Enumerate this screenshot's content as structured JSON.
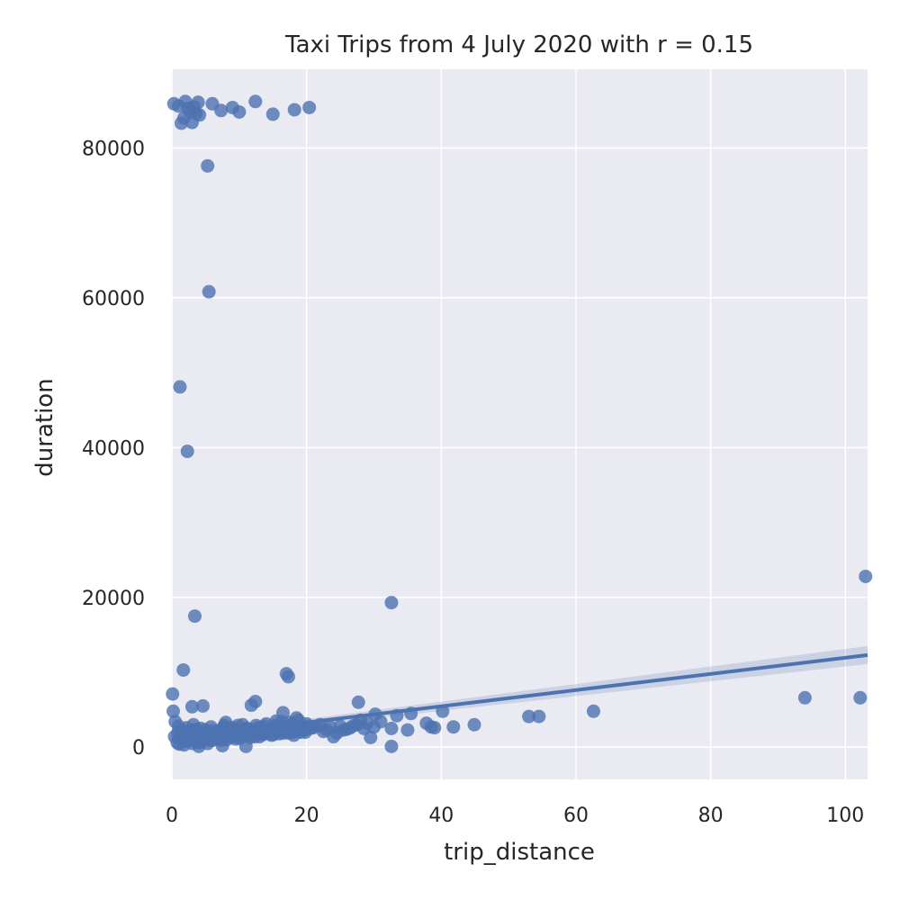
{
  "chart_data": {
    "type": "scatter",
    "title": "Taxi Trips from 4 July 2020 with r = 0.15",
    "xlabel": "trip_distance",
    "ylabel": "duration",
    "xlim": [
      0,
      103.3
    ],
    "ylim": [
      -4300,
      90500
    ],
    "xticks": [
      0,
      20,
      40,
      60,
      80,
      100
    ],
    "yticks": [
      0,
      20000,
      40000,
      60000,
      80000
    ],
    "grid": true,
    "colors": {
      "background": "#eaeaf2",
      "grid": "#ffffff",
      "points": "#4c72b0",
      "fit_band": "#4c72b0"
    },
    "regression": {
      "x_start": 0,
      "y_start": 1150,
      "x_end": 103.3,
      "y_end": 12300,
      "ci_start_half_width": 250,
      "ci_end_half_width": 1200
    },
    "points": [
      [
        0.3,
        85900
      ],
      [
        1.0,
        85600
      ],
      [
        1.4,
        83300
      ],
      [
        1.8,
        84000
      ],
      [
        2.0,
        86200
      ],
      [
        2.4,
        85300
      ],
      [
        2.7,
        84800
      ],
      [
        3.0,
        83400
      ],
      [
        3.3,
        85500
      ],
      [
        3.6,
        84600
      ],
      [
        3.9,
        86100
      ],
      [
        4.1,
        84400
      ],
      [
        6.0,
        85900
      ],
      [
        7.3,
        85000
      ],
      [
        9.0,
        85400
      ],
      [
        10.0,
        84800
      ],
      [
        12.4,
        86200
      ],
      [
        15.0,
        84500
      ],
      [
        18.2,
        85100
      ],
      [
        20.4,
        85400
      ],
      [
        5.3,
        77600
      ],
      [
        5.5,
        60800
      ],
      [
        1.2,
        48100
      ],
      [
        2.3,
        39500
      ],
      [
        3.4,
        17500
      ],
      [
        1.7,
        10300
      ],
      [
        32.6,
        19300
      ],
      [
        103.0,
        22800
      ],
      [
        17.0,
        9800
      ],
      [
        17.3,
        9400
      ],
      [
        0.1,
        7100
      ],
      [
        3.0,
        5400
      ],
      [
        4.6,
        5500
      ],
      [
        11.8,
        5600
      ],
      [
        12.4,
        6100
      ],
      [
        27.7,
        6000
      ],
      [
        94.0,
        6600
      ],
      [
        102.2,
        6600
      ],
      [
        62.6,
        4800
      ],
      [
        53.0,
        4100
      ],
      [
        54.5,
        4100
      ],
      [
        40.2,
        4800
      ],
      [
        35.5,
        4500
      ],
      [
        33.4,
        4200
      ],
      [
        30.2,
        4400
      ],
      [
        37.8,
        3200
      ],
      [
        38.5,
        2700
      ],
      [
        39.0,
        2600
      ],
      [
        41.8,
        2700
      ],
      [
        44.9,
        3000
      ],
      [
        35.0,
        2300
      ],
      [
        32.6,
        2500
      ],
      [
        29.5,
        1300
      ],
      [
        32.6,
        100
      ],
      [
        0.2,
        4800
      ],
      [
        0.5,
        3400
      ],
      [
        1.0,
        2800
      ],
      [
        1.5,
        2100
      ],
      [
        2.0,
        1500
      ],
      [
        2.5,
        900
      ],
      [
        3.0,
        500
      ],
      [
        3.5,
        1200
      ],
      [
        4.0,
        100
      ],
      [
        4.5,
        1800
      ],
      [
        5.0,
        2300
      ],
      [
        5.5,
        1600
      ],
      [
        6.0,
        900
      ],
      [
        6.5,
        1300
      ],
      [
        7.0,
        2100
      ],
      [
        7.5,
        200
      ],
      [
        8.0,
        3300
      ],
      [
        8.5,
        1500
      ],
      [
        9.0,
        2600
      ],
      [
        9.5,
        1100
      ],
      [
        10.0,
        1900
      ],
      [
        10.5,
        3000
      ],
      [
        11.0,
        100
      ],
      [
        11.5,
        2400
      ],
      [
        12.0,
        1700
      ],
      [
        12.5,
        2900
      ],
      [
        13.0,
        1400
      ],
      [
        13.5,
        2200
      ],
      [
        14.0,
        3100
      ],
      [
        14.5,
        1900
      ],
      [
        15.0,
        2600
      ],
      [
        15.5,
        3500
      ],
      [
        16.0,
        1800
      ],
      [
        16.5,
        4600
      ],
      [
        17.0,
        2500
      ],
      [
        17.5,
        3300
      ],
      [
        18.0,
        2000
      ],
      [
        18.5,
        3900
      ],
      [
        19.0,
        2800
      ],
      [
        19.5,
        2200
      ],
      [
        20.0,
        3100
      ],
      [
        21.0,
        2600
      ],
      [
        22.0,
        3000
      ],
      [
        23.0,
        2300
      ],
      [
        24.0,
        1400
      ],
      [
        25.0,
        2800
      ],
      [
        26.0,
        2400
      ],
      [
        27.0,
        2900
      ],
      [
        28.0,
        3600
      ],
      [
        29.0,
        3200
      ],
      [
        30.0,
        2700
      ],
      [
        31.0,
        3400
      ],
      [
        0.8,
        600
      ],
      [
        1.3,
        1200
      ],
      [
        1.8,
        300
      ],
      [
        2.2,
        2600
      ],
      [
        2.8,
        1900
      ],
      [
        3.2,
        3000
      ],
      [
        3.8,
        700
      ],
      [
        4.3,
        2500
      ],
      [
        4.8,
        1100
      ],
      [
        5.3,
        500
      ],
      [
        5.8,
        2700
      ],
      [
        6.3,
        1500
      ],
      [
        6.8,
        2000
      ],
      [
        7.3,
        900
      ],
      [
        7.8,
        2900
      ],
      [
        8.3,
        1800
      ],
      [
        8.8,
        1300
      ],
      [
        9.3,
        2300
      ],
      [
        9.8,
        2900
      ],
      [
        10.3,
        1500
      ],
      [
        10.8,
        2400
      ],
      [
        11.3,
        1700
      ],
      [
        11.8,
        2100
      ],
      [
        12.3,
        1400
      ],
      [
        12.8,
        2600
      ],
      [
        13.3,
        1800
      ],
      [
        13.8,
        2800
      ],
      [
        14.3,
        2200
      ],
      [
        14.8,
        1600
      ],
      [
        15.3,
        2900
      ],
      [
        15.8,
        2100
      ],
      [
        16.3,
        3400
      ],
      [
        16.8,
        2700
      ],
      [
        17.3,
        1900
      ],
      [
        17.8,
        3000
      ],
      [
        18.3,
        2400
      ],
      [
        18.8,
        3600
      ],
      [
        19.3,
        2600
      ],
      [
        19.8,
        2000
      ],
      [
        20.5,
        2500
      ],
      [
        21.5,
        2800
      ],
      [
        22.5,
        2100
      ],
      [
        23.5,
        2700
      ],
      [
        24.5,
        1900
      ],
      [
        25.5,
        2300
      ],
      [
        26.5,
        2600
      ],
      [
        27.5,
        3000
      ],
      [
        28.5,
        2500
      ],
      [
        0.4,
        1400
      ],
      [
        0.9,
        2000
      ],
      [
        1.1,
        400
      ],
      [
        1.6,
        1700
      ],
      [
        2.1,
        800
      ],
      [
        2.6,
        2200
      ],
      [
        3.1,
        1300
      ],
      [
        3.6,
        2400
      ],
      [
        4.1,
        600
      ],
      [
        4.6,
        1400
      ],
      [
        5.1,
        1800
      ],
      [
        5.6,
        900
      ],
      [
        6.1,
        2200
      ],
      [
        6.6,
        1100
      ],
      [
        7.1,
        1600
      ],
      [
        7.6,
        2600
      ],
      [
        8.1,
        1000
      ],
      [
        8.6,
        2200
      ],
      [
        9.1,
        1600
      ],
      [
        9.6,
        2000
      ],
      [
        10.1,
        1200
      ],
      [
        10.6,
        1700
      ],
      [
        11.1,
        2500
      ],
      [
        11.6,
        1300
      ],
      [
        12.1,
        1900
      ],
      [
        12.6,
        2200
      ],
      [
        13.1,
        2500
      ],
      [
        13.6,
        1700
      ],
      [
        14.1,
        2000
      ],
      [
        14.6,
        2400
      ],
      [
        15.1,
        1700
      ],
      [
        15.6,
        2300
      ],
      [
        16.1,
        2600
      ],
      [
        16.6,
        1900
      ],
      [
        17.1,
        2200
      ],
      [
        17.6,
        2800
      ],
      [
        18.1,
        1600
      ],
      [
        18.6,
        2500
      ],
      [
        19.1,
        2000
      ],
      [
        19.6,
        2700
      ]
    ]
  }
}
